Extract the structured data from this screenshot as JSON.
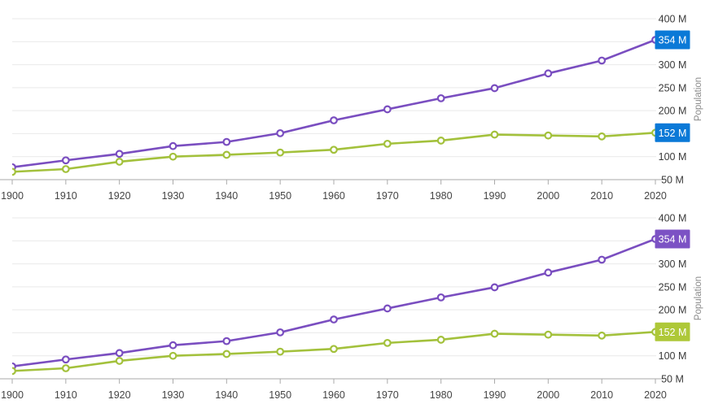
{
  "page": {
    "background": "#ffffff"
  },
  "colors": {
    "purple_line": "#7a4ec0",
    "green_line": "#a3c13c",
    "blue_badge": "#0b79d7",
    "purple_badge": "#7c52c4",
    "green_badge": "#aec838",
    "badge_text": "#ffffff",
    "gridline": "#e9e9e9",
    "axis_line": "#a9a9a9",
    "tick_mark": "#ababab",
    "x_label_text": "#454545",
    "y_label_text": "#3a3a3a",
    "axis_title_text": "#8a8a8a",
    "marker_fill": "#ffffff"
  },
  "chart_data": [
    {
      "type": "line",
      "title": "",
      "ylabel": "Population",
      "ylim": [
        50,
        400
      ],
      "grid": true,
      "legend": "none",
      "x": [
        1900,
        1910,
        1920,
        1930,
        1940,
        1950,
        1960,
        1970,
        1980,
        1990,
        2000,
        2010,
        2020
      ],
      "x_tick_labels": [
        "1900",
        "1910",
        "1920",
        "1930",
        "1940",
        "1950",
        "1960",
        "1970",
        "1980",
        "1990",
        "2000",
        "2010",
        "2020"
      ],
      "y_gridline_values": [
        400,
        350,
        300,
        250,
        200,
        150,
        100
      ],
      "y_axis_labels": [
        {
          "value": 400,
          "label": "400 M"
        },
        {
          "value": 300,
          "label": "300 M"
        },
        {
          "value": 250,
          "label": "250 M"
        },
        {
          "value": 200,
          "label": "200 M"
        },
        {
          "value": 100,
          "label": "100 M"
        },
        {
          "value": 50,
          "label": "50 M"
        }
      ],
      "series": [
        {
          "name": "purple-series",
          "color": "#7a4ec0",
          "values": [
            77,
            92,
            106,
            123,
            132,
            151,
            179,
            203,
            227,
            249,
            281,
            309,
            354
          ],
          "end_label": {
            "text": "354 M",
            "bg": "#0b79d7",
            "fg": "#ffffff"
          }
        },
        {
          "name": "green-series",
          "color": "#a3c13c",
          "values": [
            67,
            73,
            89,
            100,
            104,
            109,
            115,
            128,
            135,
            148,
            146,
            144,
            152
          ],
          "end_label": {
            "text": "152 M",
            "bg": "#0b79d7",
            "fg": "#ffffff"
          }
        }
      ]
    },
    {
      "type": "line",
      "title": "",
      "ylabel": "Population",
      "ylim": [
        50,
        400
      ],
      "grid": true,
      "legend": "none",
      "x": [
        1900,
        1910,
        1920,
        1930,
        1940,
        1950,
        1960,
        1970,
        1980,
        1990,
        2000,
        2010,
        2020
      ],
      "x_tick_labels": [
        "1900",
        "1910",
        "1920",
        "1930",
        "1940",
        "1950",
        "1960",
        "1970",
        "1980",
        "1990",
        "2000",
        "2010",
        "2020"
      ],
      "y_gridline_values": [
        400,
        350,
        300,
        250,
        200,
        150,
        100
      ],
      "y_axis_labels": [
        {
          "value": 400,
          "label": "400 M"
        },
        {
          "value": 300,
          "label": "300 M"
        },
        {
          "value": 250,
          "label": "250 M"
        },
        {
          "value": 200,
          "label": "200 M"
        },
        {
          "value": 100,
          "label": "100 M"
        },
        {
          "value": 50,
          "label": "50 M"
        }
      ],
      "series": [
        {
          "name": "purple-series",
          "color": "#7a4ec0",
          "values": [
            77,
            92,
            106,
            123,
            132,
            151,
            179,
            203,
            227,
            249,
            281,
            309,
            354
          ],
          "end_label": {
            "text": "354 M",
            "bg": "#7c52c4",
            "fg": "#ffffff"
          }
        },
        {
          "name": "green-series",
          "color": "#a3c13c",
          "values": [
            67,
            73,
            89,
            100,
            104,
            109,
            115,
            128,
            135,
            148,
            146,
            144,
            152
          ],
          "end_label": {
            "text": "152 M",
            "bg": "#aec838",
            "fg": "#ffffff"
          }
        }
      ]
    }
  ]
}
